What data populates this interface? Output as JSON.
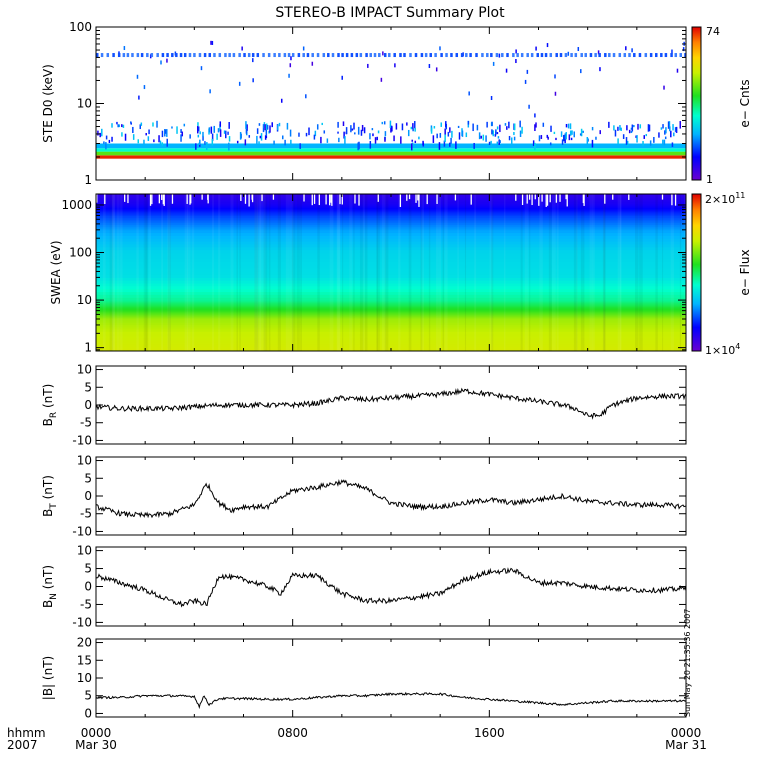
{
  "title": "STEREO-B IMPACT Summary Plot",
  "timestamp": "Sun May 20 21:35:36 2007",
  "x_axis": {
    "left_labels": [
      "hhmm",
      "2007"
    ],
    "ticks": [
      {
        "t": 0,
        "label": "0000",
        "sublabel": "Mar 30"
      },
      {
        "t": 8,
        "label": "0800",
        "sublabel": ""
      },
      {
        "t": 16,
        "label": "1600",
        "sublabel": ""
      },
      {
        "t": 24,
        "label": "0000",
        "sublabel": "Mar 31"
      }
    ],
    "range_hours": [
      0,
      24
    ]
  },
  "chart_data": [
    {
      "type": "heatmap",
      "id": "ste",
      "ylabel": "STE D0 (keV)",
      "yscale": "log",
      "ylim": [
        1,
        100
      ],
      "yticks": [
        {
          "v": 1,
          "label": "1"
        },
        {
          "v": 10,
          "label": "10"
        },
        {
          "v": 100,
          "label": "100"
        }
      ],
      "colorbar": {
        "label": "e− Cnts",
        "max_label": "74",
        "min_label": "1",
        "max": 74,
        "min": 1
      },
      "bands": [
        {
          "ylo": 1.9,
          "yhi": 2.1,
          "level": 0.97
        },
        {
          "ylo": 2.1,
          "yhi": 2.35,
          "level": 0.6
        },
        {
          "ylo": 2.35,
          "yhi": 2.6,
          "level": 0.42
        },
        {
          "ylo": 2.6,
          "yhi": 3.0,
          "level": 0.3
        }
      ],
      "line_energy_keV": 43
    },
    {
      "type": "heatmap",
      "id": "swea",
      "ylabel": "SWEA (eV)",
      "yscale": "log",
      "ylim": [
        0.85,
        1700
      ],
      "yticks": [
        {
          "v": 1,
          "label": "1"
        },
        {
          "v": 10,
          "label": "10"
        },
        {
          "v": 100,
          "label": "100"
        },
        {
          "v": 1000,
          "label": "1000"
        }
      ],
      "colorbar": {
        "label": "e− Flux",
        "max_base": "2×10",
        "max_exp": "11",
        "min_base": "1×10",
        "min_exp": "4"
      },
      "profile": [
        {
          "e": 0.85,
          "level": 0.72
        },
        {
          "e": 2,
          "level": 0.7
        },
        {
          "e": 4,
          "level": 0.66
        },
        {
          "e": 6,
          "level": 0.56
        },
        {
          "e": 10,
          "level": 0.46
        },
        {
          "e": 30,
          "level": 0.37
        },
        {
          "e": 100,
          "level": 0.35
        },
        {
          "e": 300,
          "level": 0.28
        },
        {
          "e": 600,
          "level": 0.2
        },
        {
          "e": 1000,
          "level": 0.12
        },
        {
          "e": 1700,
          "level": 0.08
        }
      ]
    },
    {
      "type": "line",
      "id": "br",
      "ylabel_main": "B",
      "ylabel_sub": "R",
      "ylabel_unit": " (nT)",
      "ylim": [
        -11,
        11
      ],
      "yticks": [
        {
          "v": 10,
          "label": "10"
        },
        {
          "v": 5,
          "label": "5"
        },
        {
          "v": 0,
          "label": "0"
        },
        {
          "v": -5,
          "label": "-5"
        },
        {
          "v": -10,
          "label": "-10"
        }
      ],
      "x": [
        0,
        1,
        2,
        3,
        4,
        5,
        6,
        7,
        8,
        9,
        10,
        11,
        12,
        13,
        14,
        15,
        16,
        17,
        18,
        19,
        19.5,
        20,
        20.5,
        21,
        22,
        23,
        24
      ],
      "y": [
        -0.5,
        -1,
        -1,
        -1,
        -0.5,
        0,
        0,
        0,
        0,
        0.5,
        2,
        1.5,
        2,
        2.5,
        3,
        4,
        3,
        2,
        1,
        0,
        -1,
        -3,
        -3,
        0,
        2,
        2.5,
        2.5
      ]
    },
    {
      "type": "line",
      "id": "bt",
      "ylabel_main": "B",
      "ylabel_sub": "T",
      "ylabel_unit": " (nT)",
      "ylim": [
        -11,
        11
      ],
      "yticks": [
        {
          "v": 10,
          "label": "10"
        },
        {
          "v": 5,
          "label": "5"
        },
        {
          "v": 0,
          "label": "0"
        },
        {
          "v": -5,
          "label": "-5"
        },
        {
          "v": -10,
          "label": "-10"
        }
      ],
      "x": [
        0,
        1,
        2,
        3,
        4,
        4.5,
        5,
        5.5,
        6,
        7,
        8,
        9,
        10,
        11,
        12,
        13,
        14,
        15,
        16,
        17,
        18,
        19,
        20,
        21,
        22,
        23,
        24
      ],
      "y": [
        -3,
        -5,
        -5.5,
        -5,
        -2.5,
        3.5,
        -2,
        -4,
        -3,
        -3,
        1.5,
        2.5,
        4,
        2,
        -2,
        -3,
        -3,
        -2,
        -1,
        -2,
        -1,
        0,
        -1.5,
        -2,
        -2.5,
        -2.5,
        -3
      ]
    },
    {
      "type": "line",
      "id": "bn",
      "ylabel_main": "B",
      "ylabel_sub": "N",
      "ylabel_unit": " (nT)",
      "ylim": [
        -11,
        11
      ],
      "yticks": [
        {
          "v": 10,
          "label": "10"
        },
        {
          "v": 5,
          "label": "5"
        },
        {
          "v": 0,
          "label": "0"
        },
        {
          "v": -5,
          "label": "-5"
        },
        {
          "v": -10,
          "label": "-10"
        }
      ],
      "x": [
        0,
        1,
        2,
        3,
        3.5,
        4,
        4.5,
        5,
        6,
        7,
        7.5,
        8,
        9,
        10,
        11,
        12,
        13,
        14,
        15,
        16,
        17,
        18,
        19,
        20,
        21,
        22,
        23,
        24
      ],
      "y": [
        3,
        1,
        -1,
        -4,
        -5,
        -4,
        -5,
        3,
        2,
        0,
        -2,
        3,
        3,
        -2,
        -4,
        -4,
        -3,
        -2,
        2,
        4,
        4.5,
        1,
        1,
        0,
        -0.5,
        -1,
        -1,
        -0.5
      ]
    },
    {
      "type": "line",
      "id": "bmag",
      "ylabel_main": "|B| (nT)",
      "ylabel_sub": "",
      "ylabel_unit": "",
      "ylim": [
        -1,
        21
      ],
      "yticks": [
        {
          "v": 20,
          "label": "20"
        },
        {
          "v": 15,
          "label": "15"
        },
        {
          "v": 10,
          "label": "10"
        },
        {
          "v": 5,
          "label": "5"
        },
        {
          "v": 0,
          "label": "0"
        }
      ],
      "x": [
        0,
        1,
        2,
        3,
        4,
        4.2,
        4.4,
        4.6,
        5,
        6,
        7,
        8,
        9,
        10,
        11,
        12,
        13,
        14,
        15,
        16,
        17,
        18,
        19,
        20,
        21,
        22,
        23,
        24
      ],
      "y": [
        4.5,
        4.5,
        5,
        5,
        4.8,
        2,
        5,
        2.5,
        4.2,
        4.2,
        4,
        4,
        4.5,
        5,
        5,
        5.5,
        5.5,
        5.5,
        4.5,
        4,
        3.5,
        3,
        2.5,
        3,
        3.5,
        3.5,
        3.5,
        3.5
      ]
    }
  ]
}
